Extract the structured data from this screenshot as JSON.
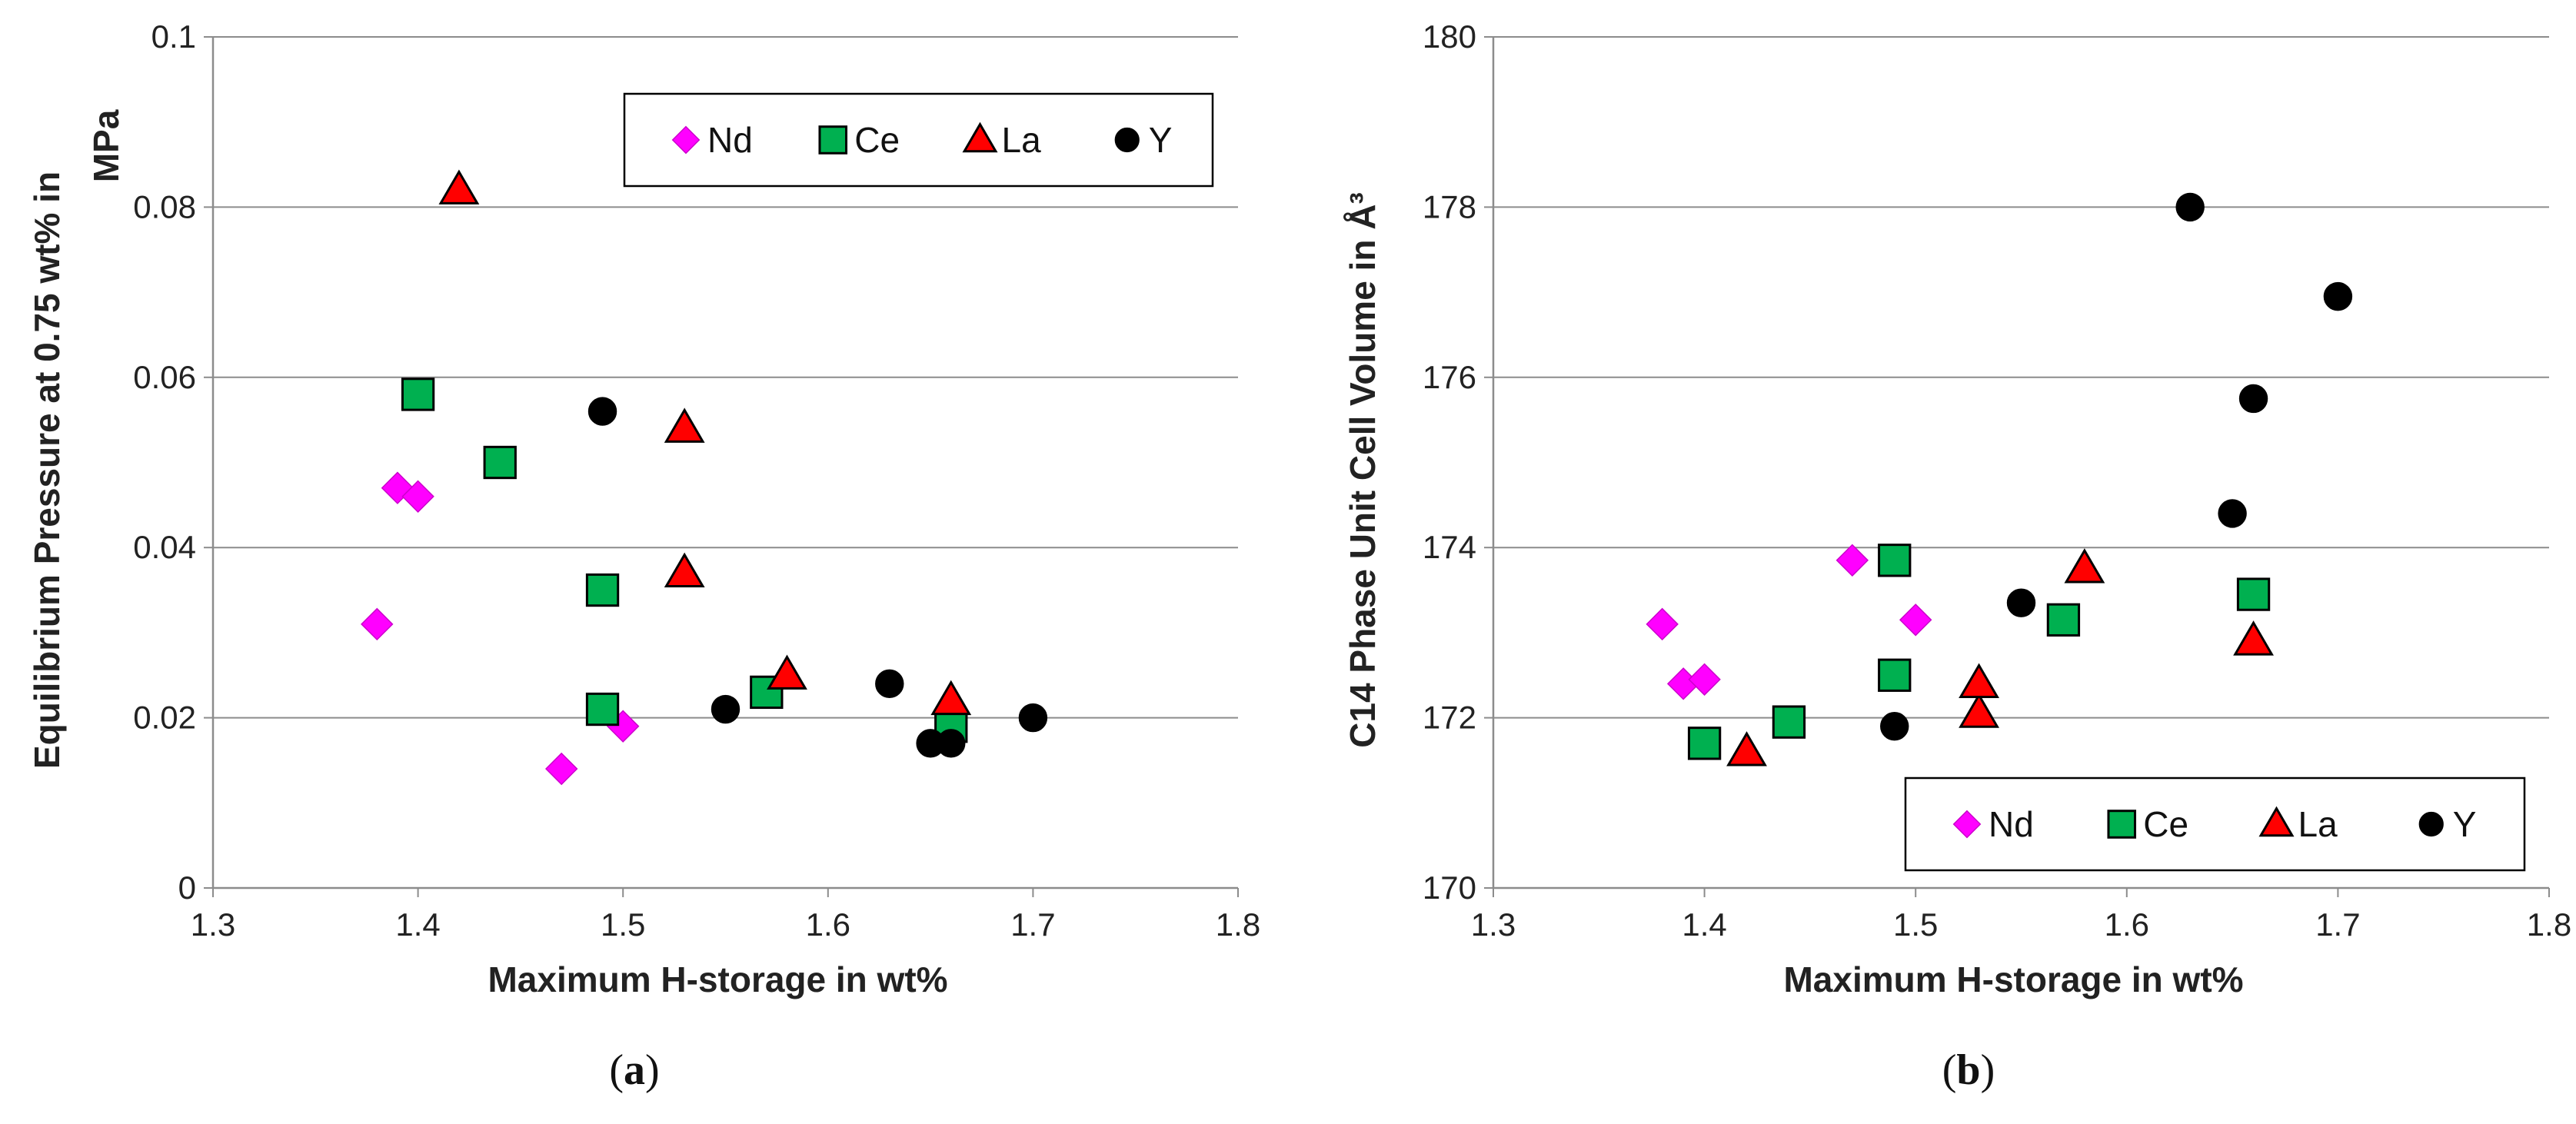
{
  "chart_data": [
    {
      "type": "scatter",
      "panel_label": "a",
      "xlabel": "Maximum H-storage in wt%",
      "ylabel_lines": [
        "Equilibrium Pressure at 0.75 wt% in",
        "MPa"
      ],
      "xlim": [
        1.3,
        1.8
      ],
      "ylim": [
        0,
        0.1
      ],
      "xticks": [
        "1.3",
        "1.4",
        "1.5",
        "1.6",
        "1.7",
        "1.8"
      ],
      "yticks": [
        "0",
        "0.02",
        "0.04",
        "0.06",
        "0.08",
        "0.1"
      ],
      "grid": "horizontal",
      "legend_position": "top-right",
      "series": [
        {
          "name": "Nd",
          "marker": "diamond",
          "color": "#ff00ff",
          "x": [
            1.38,
            1.39,
            1.4,
            1.47,
            1.5
          ],
          "y": [
            0.031,
            0.047,
            0.046,
            0.014,
            0.019
          ]
        },
        {
          "name": "Ce",
          "marker": "square",
          "color": "#00b050",
          "x": [
            1.4,
            1.44,
            1.49,
            1.49,
            1.57,
            1.66
          ],
          "y": [
            0.058,
            0.05,
            0.035,
            0.021,
            0.023,
            0.019
          ]
        },
        {
          "name": "La",
          "marker": "triangle",
          "color": "#ff0000",
          "x": [
            1.42,
            1.53,
            1.53,
            1.58,
            1.66
          ],
          "y": [
            0.082,
            0.054,
            0.037,
            0.025,
            0.022
          ]
        },
        {
          "name": "Y",
          "marker": "circle",
          "color": "#000000",
          "x": [
            1.49,
            1.55,
            1.63,
            1.65,
            1.66,
            1.7
          ],
          "y": [
            0.056,
            0.021,
            0.024,
            0.017,
            0.017,
            0.02
          ]
        }
      ]
    },
    {
      "type": "scatter",
      "panel_label": "b",
      "xlabel": "Maximum H-storage in wt%",
      "ylabel_lines": [
        "C14 Phase Unit Cell Volume in Å³"
      ],
      "xlim": [
        1.3,
        1.8
      ],
      "ylim": [
        170,
        180
      ],
      "xticks": [
        "1.3",
        "1.4",
        "1.5",
        "1.6",
        "1.7",
        "1.8"
      ],
      "yticks": [
        "170",
        "172",
        "174",
        "176",
        "178",
        "180"
      ],
      "grid": "horizontal",
      "legend_position": "bottom-right",
      "series": [
        {
          "name": "Nd",
          "marker": "diamond",
          "color": "#ff00ff",
          "x": [
            1.38,
            1.39,
            1.4,
            1.47,
            1.5
          ],
          "y": [
            173.1,
            172.4,
            172.45,
            173.85,
            173.15
          ]
        },
        {
          "name": "Ce",
          "marker": "square",
          "color": "#00b050",
          "x": [
            1.4,
            1.44,
            1.49,
            1.49,
            1.57,
            1.66
          ],
          "y": [
            171.7,
            171.95,
            173.85,
            172.5,
            173.15,
            173.45
          ]
        },
        {
          "name": "La",
          "marker": "triangle",
          "color": "#ff0000",
          "x": [
            1.42,
            1.53,
            1.53,
            1.58,
            1.66
          ],
          "y": [
            171.6,
            172.05,
            172.4,
            173.75,
            172.9
          ]
        },
        {
          "name": "Y",
          "marker": "circle",
          "color": "#000000",
          "x": [
            1.49,
            1.55,
            1.63,
            1.65,
            1.66,
            1.7
          ],
          "y": [
            171.9,
            173.35,
            178.0,
            174.4,
            175.75,
            176.95
          ]
        }
      ]
    }
  ]
}
